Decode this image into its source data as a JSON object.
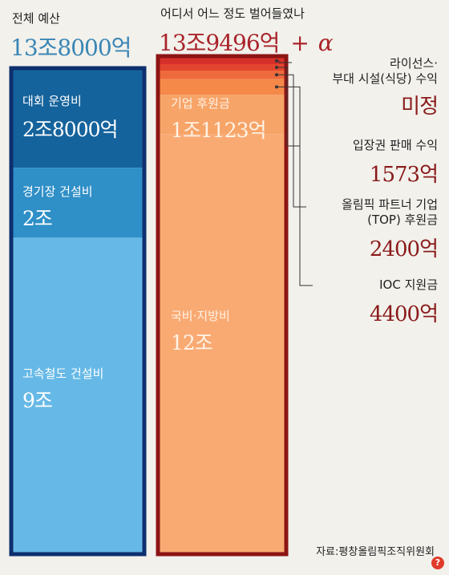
{
  "left": {
    "title": "전체 예산",
    "total": "13조8000억"
  },
  "right": {
    "title": "어디서 어느 정도 벌어들였나",
    "total": "13조9496억",
    "total_suffix": "+",
    "alpha": "α"
  },
  "chart_data": [
    {
      "type": "bar",
      "title": "전체 예산",
      "subtitle": "13조8000억",
      "orientation": "stacked-vertical",
      "unit": "억",
      "categories": [
        "대회 운영비",
        "경기장 건설비",
        "고속철도 건설비"
      ],
      "values": [
        28000,
        20000,
        90000
      ],
      "value_labels": [
        "2조8000억",
        "2조",
        "9조"
      ],
      "colors": [
        "#15639c",
        "#2f8fc7",
        "#66b9e6"
      ]
    },
    {
      "type": "bar",
      "title": "어디서 어느 정도 벌어들였나",
      "subtitle": "13조9496억 + α",
      "orientation": "stacked-vertical",
      "unit": "억",
      "categories": [
        "라이선스·부대 시설(식당) 수익",
        "입장권 판매 수익",
        "올림픽 파트너 기업(TOP) 후원금",
        "IOC 지원금",
        "기업 후원금",
        "국비·지방비"
      ],
      "values": [
        null,
        1573,
        2400,
        4400,
        11123,
        120000
      ],
      "value_labels": [
        "미정",
        "1573억",
        "2400억",
        "4400억",
        "1조1123억",
        "12조"
      ],
      "colors": [
        "#d7302a",
        "#e4452e",
        "#ee6a3c",
        "#f5894a",
        "#f7a468",
        "#f9aa73"
      ]
    }
  ],
  "annotations": [
    {
      "label_lines": [
        "라이선스·",
        "부대 시설(식당) 수익"
      ],
      "value": "미정"
    },
    {
      "label_lines": [
        "입장권 판매 수익"
      ],
      "value": "1573억"
    },
    {
      "label_lines": [
        "올림픽 파트너 기업",
        "(TOP) 후원금"
      ],
      "value": "2400억"
    },
    {
      "label_lines": [
        "IOC 지원금"
      ],
      "value": "4400억"
    }
  ],
  "source": "자료:평창올림픽조직위원회",
  "icons": {
    "help": "question-icon"
  }
}
